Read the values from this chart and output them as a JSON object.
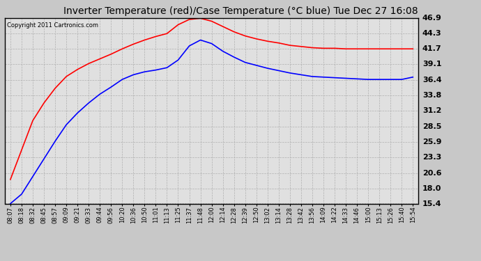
{
  "title": "Inverter Temperature (red)/Case Temperature (°C blue) Tue Dec 27 16:08",
  "copyright": "Copyright 2011 Cartronics.com",
  "background_color": "#c8c8c8",
  "plot_bg_color": "#e0e0e0",
  "y_ticks": [
    15.4,
    18.0,
    20.6,
    23.3,
    25.9,
    28.5,
    31.2,
    33.8,
    36.4,
    39.1,
    41.7,
    44.3,
    46.9
  ],
  "y_min": 15.4,
  "y_max": 46.9,
  "x_labels": [
    "08:07",
    "08:18",
    "08:32",
    "08:45",
    "08:57",
    "09:09",
    "09:21",
    "09:33",
    "09:44",
    "09:56",
    "10:20",
    "10:36",
    "10:50",
    "11:01",
    "11:13",
    "11:25",
    "11:37",
    "11:48",
    "12:00",
    "12:14",
    "12:28",
    "12:39",
    "12:50",
    "13:02",
    "13:14",
    "13:28",
    "13:42",
    "13:56",
    "14:09",
    "14:22",
    "14:33",
    "14:46",
    "15:00",
    "15:13",
    "15:26",
    "15:40",
    "15:54"
  ],
  "red_values": [
    19.5,
    24.5,
    29.5,
    32.5,
    35.0,
    37.0,
    38.2,
    39.2,
    40.0,
    40.8,
    41.7,
    42.5,
    43.2,
    43.8,
    44.3,
    45.8,
    46.7,
    46.9,
    46.4,
    45.5,
    44.6,
    43.9,
    43.4,
    43.0,
    42.7,
    42.3,
    42.1,
    41.9,
    41.8,
    41.8,
    41.7,
    41.7,
    41.7,
    41.7,
    41.7,
    41.7,
    41.7
  ],
  "blue_values": [
    15.4,
    17.0,
    20.0,
    23.0,
    26.0,
    28.8,
    30.8,
    32.5,
    34.0,
    35.2,
    36.5,
    37.3,
    37.8,
    38.1,
    38.5,
    39.8,
    42.2,
    43.2,
    42.6,
    41.3,
    40.3,
    39.4,
    38.9,
    38.4,
    38.0,
    37.6,
    37.3,
    37.0,
    36.9,
    36.8,
    36.7,
    36.6,
    36.5,
    36.5,
    36.5,
    36.5,
    36.9
  ],
  "grid_color": "#b0b0b0",
  "title_fontsize": 10,
  "copyright_fontsize": 6,
  "ytick_fontsize": 8,
  "xtick_fontsize": 6
}
